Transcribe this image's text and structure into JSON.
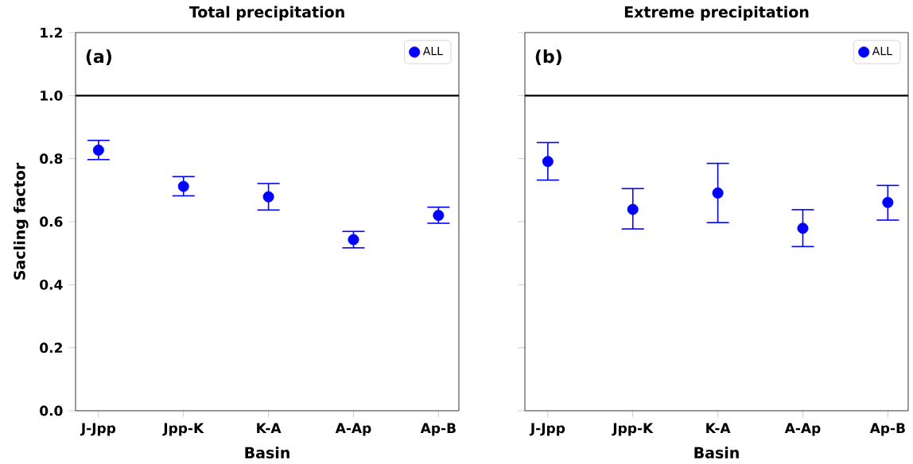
{
  "chart_data": [
    {
      "type": "scatter",
      "title": "Total precipitation",
      "xlabel": "Basin",
      "ylabel": "Sacling factor",
      "annotations": [
        "(a)"
      ],
      "categories": [
        "J-Jpp",
        "Jpp-K",
        "K-A",
        "A-Ap",
        "Ap-B"
      ],
      "series": [
        {
          "name": "ALL",
          "color": "#0000ff",
          "values": [
            0.827,
            0.712,
            0.679,
            0.543,
            0.62
          ],
          "errors": [
            [
              0.797,
              0.858
            ],
            [
              0.682,
              0.743
            ],
            [
              0.637,
              0.721
            ],
            [
              0.517,
              0.569
            ],
            [
              0.595,
              0.646
            ]
          ]
        }
      ],
      "ylim": [
        0,
        1.2
      ],
      "yticks": [
        {
          "value": 0,
          "label": "0.0"
        },
        0.2,
        0.4,
        0.6,
        0.8,
        {
          "value": 1,
          "label": "1.0"
        },
        1.2
      ],
      "ref_lines": [
        {
          "axis": "y",
          "value": 1,
          "color": "#000000"
        }
      ],
      "legend": "top right",
      "marker": "circle",
      "grid": false
    },
    {
      "type": "scatter",
      "title": "Extreme precipitation",
      "xlabel": "Basin",
      "annotations": [
        "(b)"
      ],
      "categories": [
        "J-Jpp",
        "Jpp-K",
        "K-A",
        "A-Ap",
        "Ap-B"
      ],
      "series": [
        {
          "name": "ALL",
          "color": "#0000ff",
          "values": [
            0.791,
            0.639,
            0.691,
            0.579,
            0.661
          ],
          "errors": [
            [
              0.732,
              0.851
            ],
            [
              0.577,
              0.705
            ],
            [
              0.597,
              0.785
            ],
            [
              0.521,
              0.638
            ],
            [
              0.605,
              0.715
            ]
          ]
        }
      ],
      "ylim": [
        0,
        1.2
      ],
      "yticks": [
        0,
        0.2,
        0.4,
        0.6,
        0.8,
        1,
        1.2
      ],
      "tick_labels": "x",
      "ref_lines": [
        {
          "axis": "y",
          "value": 1,
          "color": "#000000"
        }
      ],
      "legend": "top right",
      "marker": "circle",
      "grid": false
    }
  ]
}
